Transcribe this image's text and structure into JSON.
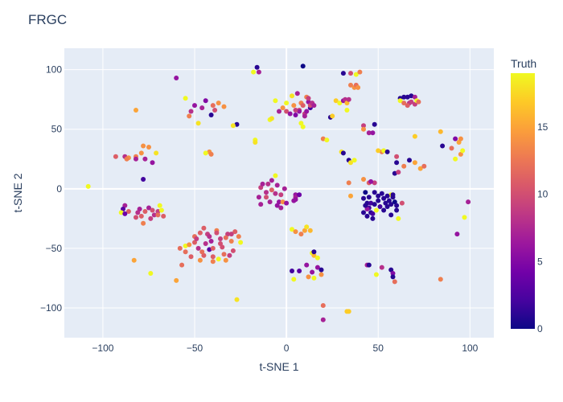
{
  "chart_data": {
    "type": "scatter",
    "title": "FRGC",
    "xlabel": "t-SNE 1",
    "ylabel": "t-SNE 2",
    "xlim": [
      -121,
      113
    ],
    "ylim": [
      -125,
      118
    ],
    "x_ticks": [
      -100,
      -50,
      0,
      50,
      100
    ],
    "x_tick_labels": [
      "−100",
      "−50",
      "0",
      "50",
      "100"
    ],
    "y_ticks": [
      -100,
      -50,
      0,
      50,
      100
    ],
    "y_tick_labels": [
      "−100",
      "−50",
      "0",
      "50",
      "100"
    ],
    "grid": true,
    "colorbar": {
      "title": "Truth",
      "range": [
        0,
        19
      ],
      "ticks": [
        0,
        5,
        10,
        15
      ],
      "tick_labels": [
        "0",
        "5",
        "10",
        "15"
      ],
      "colorscale": "plasma"
    },
    "points": [
      [
        -108,
        2,
        19
      ],
      [
        -88,
        -14,
        7
      ],
      [
        -89,
        -17,
        3
      ],
      [
        -90,
        -20,
        19
      ],
      [
        -86,
        -19,
        11
      ],
      [
        -80,
        -17,
        7
      ],
      [
        -81,
        -20,
        8
      ],
      [
        -79,
        -23,
        11
      ],
      [
        -77,
        -19,
        11
      ],
      [
        -75,
        -16,
        7
      ],
      [
        -73,
        -18,
        10
      ],
      [
        -72,
        -22,
        8
      ],
      [
        -70,
        -19,
        9
      ],
      [
        -68,
        -18,
        19
      ],
      [
        -70,
        -22,
        12
      ],
      [
        -67,
        -23,
        11
      ],
      [
        -82,
        -24,
        10
      ],
      [
        -78,
        -29,
        13
      ],
      [
        -74,
        -25,
        9
      ],
      [
        -88,
        -21,
        4
      ],
      [
        -69,
        -14,
        19
      ],
      [
        -93,
        27,
        11
      ],
      [
        -88,
        27,
        8
      ],
      [
        -86,
        26,
        14
      ],
      [
        -87,
        25,
        13
      ],
      [
        -82,
        27,
        13
      ],
      [
        -79,
        30,
        14
      ],
      [
        -78,
        36,
        14
      ],
      [
        -75,
        35,
        14
      ],
      [
        -71,
        30,
        18
      ],
      [
        -73,
        22,
        6
      ],
      [
        -77,
        25,
        7
      ],
      [
        -82,
        25,
        7
      ],
      [
        -78,
        8,
        2
      ],
      [
        -82,
        66,
        15
      ],
      [
        -60,
        93,
        6
      ],
      [
        -55,
        76,
        19
      ],
      [
        -50,
        70,
        6
      ],
      [
        -52,
        65,
        8
      ],
      [
        -46,
        68,
        7
      ],
      [
        -44,
        74,
        5
      ],
      [
        -40,
        70,
        12
      ],
      [
        -39,
        66,
        10
      ],
      [
        -37,
        72,
        14
      ],
      [
        -34,
        69,
        14
      ],
      [
        -41,
        62,
        1
      ],
      [
        -48,
        55,
        18
      ],
      [
        -53,
        61,
        13
      ],
      [
        -42,
        31,
        14
      ],
      [
        -41,
        29,
        13
      ],
      [
        -44,
        30,
        19
      ],
      [
        -27,
        54,
        1
      ],
      [
        -29,
        53,
        18
      ],
      [
        -58,
        -50,
        12
      ],
      [
        -55,
        -48,
        19
      ],
      [
        -50,
        -40,
        12
      ],
      [
        -50,
        -45,
        11
      ],
      [
        -47,
        -37,
        11
      ],
      [
        -48,
        -50,
        8
      ],
      [
        -45,
        -33,
        11
      ],
      [
        -43,
        -38,
        9
      ],
      [
        -41,
        -44,
        7
      ],
      [
        -42,
        -51,
        3
      ],
      [
        -40,
        -57,
        11
      ],
      [
        -38,
        -35,
        13
      ],
      [
        -36,
        -42,
        9
      ],
      [
        -35,
        -49,
        10
      ],
      [
        -34,
        -55,
        12
      ],
      [
        -32,
        -38,
        9
      ],
      [
        -30,
        -44,
        13
      ],
      [
        -28,
        -36,
        11
      ],
      [
        -26,
        -40,
        13
      ],
      [
        -25,
        -45,
        19
      ],
      [
        -29,
        -52,
        10
      ],
      [
        -31,
        -56,
        9
      ],
      [
        -33,
        -60,
        14
      ],
      [
        -37,
        -59,
        19
      ],
      [
        -40,
        -61,
        13
      ],
      [
        -45,
        -56,
        11
      ],
      [
        -47,
        -60,
        14
      ],
      [
        -52,
        -57,
        11
      ],
      [
        -49,
        -42,
        9
      ],
      [
        -44,
        -46,
        8
      ],
      [
        -40,
        -50,
        11
      ],
      [
        -36,
        -46,
        10
      ],
      [
        -33,
        -41,
        12
      ],
      [
        -30,
        -38,
        9
      ],
      [
        -38,
        -37,
        10
      ],
      [
        -42,
        -40,
        8
      ],
      [
        -46,
        -53,
        12
      ],
      [
        -53,
        -47,
        14
      ],
      [
        -55,
        -53,
        12
      ],
      [
        -57,
        -64,
        12
      ],
      [
        -60,
        -77,
        15
      ],
      [
        -83,
        -60,
        15
      ],
      [
        -74,
        -71,
        19
      ],
      [
        -27,
        -93,
        18
      ],
      [
        -16,
        102,
        1
      ],
      [
        -18,
        98,
        19
      ],
      [
        -15,
        98,
        7
      ],
      [
        -17,
        41,
        19
      ],
      [
        -17,
        39,
        18
      ],
      [
        -15,
        -7,
        7
      ],
      [
        -14,
        1,
        9
      ],
      [
        -13,
        4,
        7
      ],
      [
        -11,
        -3,
        8
      ],
      [
        -10,
        4,
        8
      ],
      [
        -8,
        7,
        7
      ],
      [
        -8,
        -1,
        11
      ],
      [
        -6,
        -4,
        8
      ],
      [
        -5,
        3,
        7
      ],
      [
        -4,
        -11,
        6
      ],
      [
        -3,
        -5,
        9
      ],
      [
        -2,
        -11,
        14
      ],
      [
        -1,
        0,
        7
      ],
      [
        -6,
        11,
        19
      ],
      [
        -9,
        -11,
        7
      ],
      [
        -14,
        -13,
        7
      ],
      [
        -11,
        -7,
        10
      ],
      [
        5,
        -5,
        6
      ],
      [
        4,
        -10,
        6
      ],
      [
        5,
        -7,
        7
      ],
      [
        -5,
        -14,
        6
      ],
      [
        -3,
        -16,
        7
      ],
      [
        0,
        -12,
        6
      ],
      [
        5,
        -9,
        6
      ],
      [
        7,
        -5,
        4
      ],
      [
        -9,
        58,
        19
      ],
      [
        -8,
        59,
        18
      ],
      [
        -6,
        74,
        19
      ],
      [
        -4,
        65,
        7
      ],
      [
        -2,
        68,
        14
      ],
      [
        0,
        65,
        10
      ],
      [
        0,
        72,
        19
      ],
      [
        2,
        63,
        6
      ],
      [
        3,
        78,
        18
      ],
      [
        4,
        70,
        14
      ],
      [
        5,
        62,
        5
      ],
      [
        6,
        80,
        7
      ],
      [
        7,
        66,
        10
      ],
      [
        8,
        72,
        13
      ],
      [
        9,
        70,
        11
      ],
      [
        10,
        63,
        9
      ],
      [
        11,
        77,
        13
      ],
      [
        11,
        65,
        6
      ],
      [
        12,
        73,
        6
      ],
      [
        13,
        68,
        2
      ],
      [
        13,
        70,
        10
      ],
      [
        14,
        72,
        8
      ],
      [
        12,
        76,
        9
      ],
      [
        15,
        70,
        7
      ],
      [
        10,
        61,
        7
      ],
      [
        8,
        55,
        19
      ],
      [
        9,
        52,
        19
      ],
      [
        9,
        103,
        0
      ],
      [
        7,
        65,
        6
      ],
      [
        5,
        66,
        9
      ],
      [
        3,
        -34,
        19
      ],
      [
        5,
        -36,
        14
      ],
      [
        8,
        -38,
        13
      ],
      [
        10,
        -35,
        15
      ],
      [
        11,
        -32,
        18
      ],
      [
        13,
        -35,
        16
      ],
      [
        14,
        -54,
        19
      ],
      [
        15,
        -56,
        16
      ],
      [
        15,
        -53,
        1
      ],
      [
        17,
        -58,
        19
      ],
      [
        17,
        -66,
        6
      ],
      [
        11,
        -64,
        6
      ],
      [
        14,
        -70,
        6
      ],
      [
        19,
        -68,
        1
      ],
      [
        19,
        -72,
        14
      ],
      [
        15,
        -75,
        19
      ],
      [
        7,
        -69,
        3
      ],
      [
        3,
        -69,
        2
      ],
      [
        4,
        -76,
        19
      ],
      [
        12,
        -74,
        14
      ],
      [
        20,
        -98,
        12
      ],
      [
        20,
        -110,
        7
      ],
      [
        20,
        42,
        13
      ],
      [
        24,
        60,
        1
      ],
      [
        22,
        41,
        19
      ],
      [
        25,
        61,
        17
      ],
      [
        27,
        74,
        17
      ],
      [
        29,
        72,
        19
      ],
      [
        31,
        74,
        6
      ],
      [
        32,
        75,
        8
      ],
      [
        33,
        72,
        16
      ],
      [
        34,
        75,
        8
      ],
      [
        33,
        66,
        19
      ],
      [
        31,
        97,
        1
      ],
      [
        35,
        97,
        10
      ],
      [
        38,
        96,
        19
      ],
      [
        40,
        98,
        13
      ],
      [
        35,
        87,
        13
      ],
      [
        37,
        85,
        14
      ],
      [
        38,
        87,
        12
      ],
      [
        39,
        85,
        14
      ],
      [
        30,
        31,
        18
      ],
      [
        31,
        30,
        1
      ],
      [
        34,
        24,
        1
      ],
      [
        35,
        22,
        18
      ],
      [
        37,
        24,
        19
      ],
      [
        34,
        -103,
        17
      ],
      [
        42,
        53,
        9
      ],
      [
        42,
        50,
        14
      ],
      [
        45,
        47,
        7
      ],
      [
        48,
        54,
        1
      ],
      [
        47,
        47,
        6
      ],
      [
        52,
        31,
        13
      ],
      [
        53,
        32,
        19
      ],
      [
        50,
        32,
        17
      ],
      [
        55,
        31,
        1
      ],
      [
        48,
        5,
        9
      ],
      [
        45,
        5,
        11
      ],
      [
        46,
        6,
        6
      ],
      [
        42,
        8,
        14
      ],
      [
        34,
        5,
        13
      ],
      [
        35,
        -6,
        15
      ],
      [
        59,
        13,
        1
      ],
      [
        61,
        14,
        9
      ],
      [
        57,
        -5,
        19
      ],
      [
        33,
        -103,
        17
      ],
      [
        42,
        -8,
        1
      ],
      [
        44,
        -12,
        1
      ],
      [
        45,
        -16,
        2
      ],
      [
        46,
        -20,
        1
      ],
      [
        47,
        -25,
        1
      ],
      [
        45,
        -7,
        1
      ],
      [
        48,
        -3,
        1
      ],
      [
        50,
        -10,
        1
      ],
      [
        51,
        -15,
        2
      ],
      [
        52,
        -4,
        1
      ],
      [
        53,
        -8,
        1
      ],
      [
        54,
        -12,
        1
      ],
      [
        55,
        -6,
        1
      ],
      [
        56,
        -10,
        1
      ],
      [
        57,
        -13,
        1
      ],
      [
        58,
        -7,
        1
      ],
      [
        59,
        -11,
        0
      ],
      [
        60,
        -14,
        1
      ],
      [
        60,
        -18,
        1
      ],
      [
        58,
        -5,
        1
      ],
      [
        50,
        -6,
        1
      ],
      [
        43,
        -3,
        0
      ],
      [
        44,
        -17,
        6
      ],
      [
        47,
        -21,
        2
      ],
      [
        49,
        -18,
        19
      ],
      [
        53,
        -18,
        1
      ],
      [
        55,
        -15,
        1
      ],
      [
        43,
        -14,
        1
      ],
      [
        46,
        -12,
        2
      ],
      [
        48,
        -13,
        1
      ],
      [
        42,
        -20,
        1
      ],
      [
        44,
        -23,
        1
      ],
      [
        44,
        -64,
        7
      ],
      [
        45,
        -64,
        1
      ],
      [
        52,
        -66,
        8
      ],
      [
        49,
        -72,
        19
      ],
      [
        57,
        -68,
        1
      ],
      [
        58,
        -71,
        5
      ],
      [
        58,
        -74,
        1
      ],
      [
        59,
        -78,
        12
      ],
      [
        57,
        -22,
        1
      ],
      [
        61,
        -25,
        19
      ],
      [
        62,
        76,
        1
      ],
      [
        64,
        77,
        1
      ],
      [
        66,
        77,
        1
      ],
      [
        67,
        72,
        8
      ],
      [
        68,
        78,
        1
      ],
      [
        70,
        71,
        9
      ],
      [
        70,
        77,
        7
      ],
      [
        71,
        74,
        19
      ],
      [
        72,
        73,
        12
      ],
      [
        62,
        74,
        19
      ],
      [
        64,
        72,
        12
      ],
      [
        66,
        70,
        11
      ],
      [
        68,
        73,
        9
      ],
      [
        60,
        27,
        10
      ],
      [
        64,
        19,
        13
      ],
      [
        67,
        24,
        1
      ],
      [
        70,
        22,
        15
      ],
      [
        73,
        17,
        15
      ],
      [
        70,
        44,
        17
      ],
      [
        75,
        19,
        12
      ],
      [
        60,
        22,
        1
      ],
      [
        84,
        48,
        16
      ],
      [
        85,
        36,
        1
      ],
      [
        90,
        34,
        12
      ],
      [
        92,
        42,
        5
      ],
      [
        92,
        25,
        19
      ],
      [
        94,
        39,
        15
      ],
      [
        95,
        42,
        14
      ],
      [
        95,
        29,
        14
      ],
      [
        96,
        32,
        19
      ],
      [
        97,
        -24,
        19
      ],
      [
        93,
        -38,
        6
      ],
      [
        99,
        -11,
        7
      ],
      [
        84,
        -76,
        13
      ],
      [
        63,
        -12,
        10
      ]
    ]
  }
}
